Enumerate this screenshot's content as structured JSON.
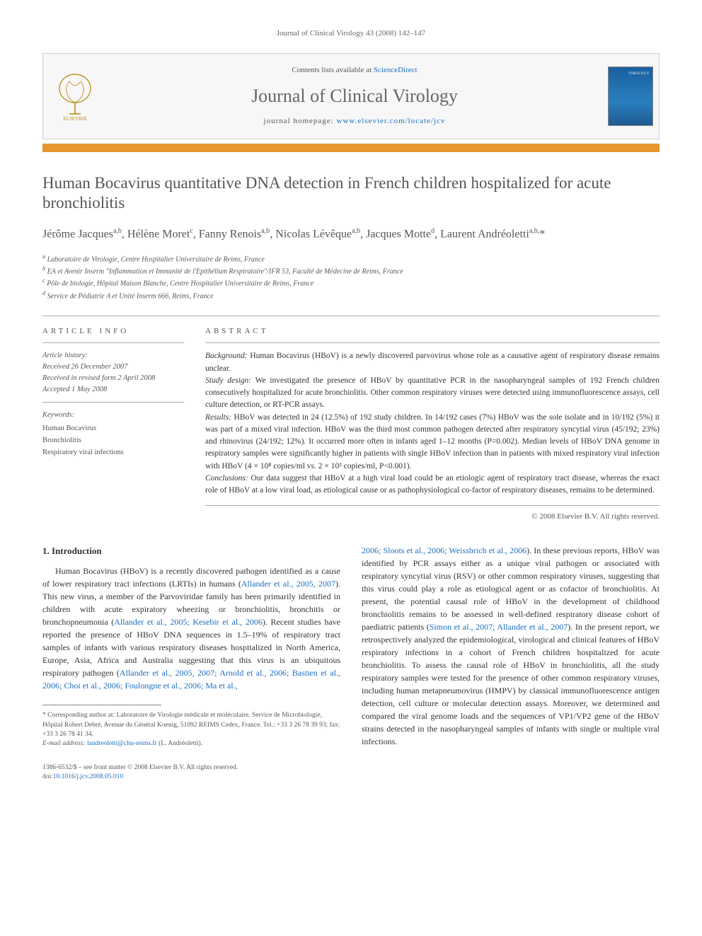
{
  "header": {
    "citation": "Journal of Clinical Virology 43 (2008) 142–147"
  },
  "banner": {
    "contents_prefix": "Contents lists available at ",
    "contents_link": "ScienceDirect",
    "journal_title": "Journal of Clinical Virology",
    "homepage_prefix": "journal homepage: ",
    "homepage_url": "www.elsevier.com/locate/jcv",
    "publisher_logo_alt": "Elsevier tree logo",
    "cover_alt": "Journal cover: Virology"
  },
  "article": {
    "title": "Human Bocavirus quantitative DNA detection in French children hospitalized for acute bronchiolitis",
    "authors_html": "Jérôme Jacques<sup>a,b</sup>, Hélène Moret<sup>c</sup>, Fanny Renois<sup>a,b</sup>, Nicolas Lévêque<sup>a,b</sup>, Jacques Motte<sup>d</sup>, Laurent Andréoletti<sup>a,b,</sup>*",
    "affiliations": [
      "Laboratoire de Virologie, Centre Hospitalier Universitaire de Reims, France",
      "EA et Avenir Inserm \"Inflammation et Immunité de l'Epithélium Respiratoire\"/IFR 53, Faculté de Médecine de Reims, France",
      "Pôle de biologie, Hôpital Maison Blanche, Centre Hospitalier Universitaire de Reims, France",
      "Service de Pédiatrie A et Unité Inserm 666, Reims, France"
    ],
    "affiliation_markers": [
      "a",
      "b",
      "c",
      "d"
    ]
  },
  "info": {
    "section_label": "article info",
    "history_label": "Article history:",
    "history": [
      "Received 26 December 2007",
      "Received in revised form 2 April 2008",
      "Accepted 1 May 2008"
    ],
    "keywords_label": "Keywords:",
    "keywords": [
      "Human Bocavirus",
      "Bronchiolitis",
      "Respiratory viral infections"
    ]
  },
  "abstract": {
    "section_label": "abstract",
    "segments": [
      {
        "label": "Background:",
        "text": " Human Bocavirus (HBoV) is a newly discovered parvovirus whose role as a causative agent of respiratory disease remains unclear."
      },
      {
        "label": "Study design:",
        "text": " We investigated the presence of HBoV by quantitative PCR in the nasopharyngeal samples of 192 French children consecutively hospitalized for acute bronchiolitis. Other common respiratory viruses were detected using immunofluorescence assays, cell culture detection, or RT-PCR assays."
      },
      {
        "label": "Results:",
        "text": " HBoV was detected in 24 (12.5%) of 192 study children. In 14/192 cases (7%) HBoV was the sole isolate and in 10/192 (5%) it was part of a mixed viral infection. HBoV was the third most common pathogen detected after respiratory syncytial virus (45/192; 23%) and rhinovirus (24/192; 12%). It occurred more often in infants aged 1–12 months (P=0.002). Median levels of HBoV DNA genome in respiratory samples were significantly higher in patients with single HBoV infection than in patients with mixed respiratory viral infection with HBoV (4 × 10⁸ copies/ml vs. 2 × 10³ copies/ml, P<0.001)."
      },
      {
        "label": "Conclusions:",
        "text": " Our data suggest that HBoV at a high viral load could be an etiologic agent of respiratory tract disease, whereas the exact role of HBoV at a low viral load, as etiological cause or as pathophysiological co-factor of respiratory diseases, remains to be determined."
      }
    ],
    "copyright": "© 2008 Elsevier B.V. All rights reserved."
  },
  "body": {
    "section_number": "1.",
    "section_title": "Introduction",
    "col1_para": "Human Bocavirus (HBoV) is a recently discovered pathogen identified as a cause of lower respiratory tract infections (LRTIs) in humans (Allander et al., 2005, 2007). This new virus, a member of the Parvoviridae family has been primarily identified in children with acute expiratory wheezing or bronchiolitis, bronchitis or bronchopneumonia (Allander et al., 2005; Kesebir et al., 2006). Recent studies have reported the presence of HBoV DNA sequences in 1.5–19% of respiratory tract samples of infants with various respiratory diseases hospitalized in North America, Europe, Asia, Africa and Australia suggesting that this virus is an ubiquitous respiratory pathogen (Allander et al., 2005, 2007; Arnold et al., 2006; Bastien et al., 2006; Choi et al., 2006; Foulongne et al., 2006; Ma et al.,",
    "col1_links": [
      "Allander et al., 2005, 2007",
      "Allander et al., 2005; Kesebir et al., 2006",
      "Allander et al., 2005, 2007; Arnold et al., 2006; Bastien et al., 2006; Choi et al., 2006; Foulongne et al., 2006; Ma et al.,"
    ],
    "col2_para": "2006; Sloots et al., 2006; Weissbrich et al., 2006). In these previous reports, HBoV was identified by PCR assays either as a unique viral pathogen or associated with respiratory syncytial virus (RSV) or other common respiratory viruses, suggesting that this virus could play a role as etiological agent or as cofactor of bronchiolitis. At present, the potential causal role of HBoV in the development of childhood bronchiolitis remains to be assessed in well-defined respiratory disease cohort of paediatric patients (Simon et al., 2007; Allander et al., 2007). In the present report, we retrospectively analyzed the epidemiological, virological and clinical features of HBoV respiratory infections in a cohort of French children hospitalized for acute bronchiolitis. To assess the causal role of HBoV in bronchiolitis, all the study respiratory samples were tested for the presence of other common respiratory viruses, including human metapneumovirus (HMPV) by classical immunofluorescence antigen detection, cell culture or molecular detection assays. Moreover, we determined and compared the viral genome loads and the sequences of VP1/VP2 gene of the HBoV strains detected in the nasopharyngeal samples of infants with single or multiple viral infections.",
    "col2_links": [
      "2006; Sloots et al., 2006; Weissbrich et al., 2006",
      "Simon et al., 2007; Allander et al., 2007"
    ]
  },
  "footnote": {
    "corresponding": "* Corresponding author at: Laboratoire de Virologie médicale et moléculaire, Service de Microbiologie, Hôpital Robert Debré, Avenue du Général Koenig, 51092 REIMS Cedex, France. Tel.: +33 3 26 78 39 93; fax: +33 3 26 78 41 34.",
    "email_label": "E-mail address: ",
    "email": "landreoletti@chu-reims.fr",
    "email_suffix": " (L. Andréoletti)."
  },
  "footer": {
    "issn_line": "1386-6532/$ – see front matter © 2008 Elsevier B.V. All rights reserved.",
    "doi_label": "doi:",
    "doi": "10.1016/j.jcv.2008.05.010"
  },
  "colors": {
    "accent_orange": "#e8962f",
    "link_blue": "#1b6ec2",
    "text_gray": "#555555",
    "border_gray": "#aaaaaa",
    "banner_bg": "#f7f7f7"
  }
}
